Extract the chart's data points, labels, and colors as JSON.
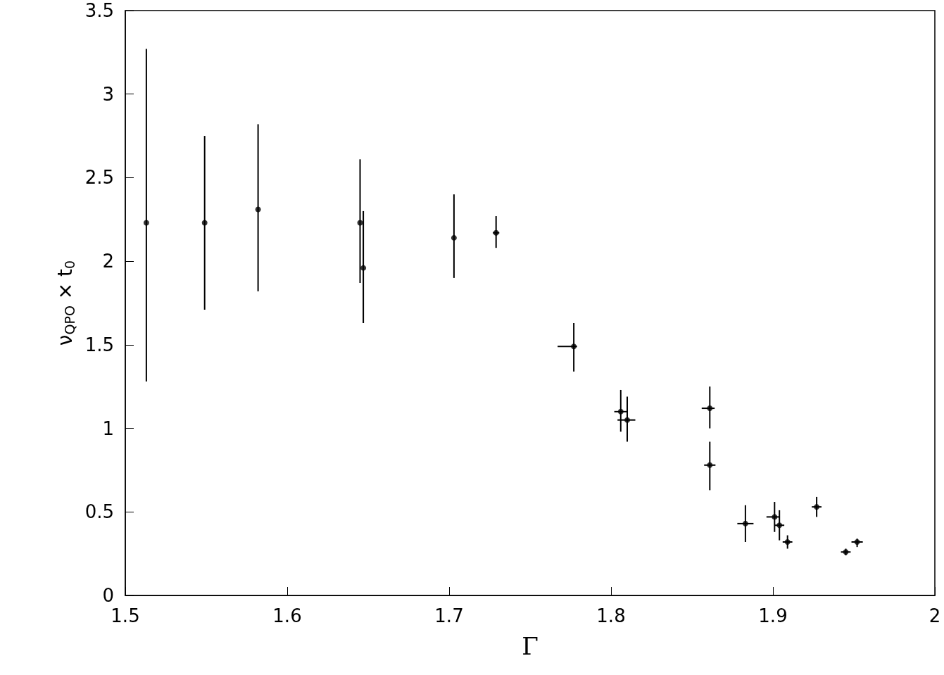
{
  "chart_data": {
    "type": "scatter",
    "xlabel": "Γ",
    "ylabel": "ν$_{QPO}$ × t$_{0}$",
    "x": [
      1.513,
      1.549,
      1.582,
      1.645,
      1.647,
      1.703,
      1.729,
      1.777,
      1.806,
      1.81,
      1.861,
      1.861,
      1.883,
      1.901,
      1.904,
      1.909,
      1.927,
      1.945,
      1.952
    ],
    "values": [
      2.23,
      2.23,
      2.31,
      2.23,
      1.96,
      2.14,
      2.17,
      1.49,
      1.1,
      1.05,
      1.12,
      0.78,
      0.43,
      0.47,
      0.42,
      0.32,
      0.53,
      0.26,
      0.32
    ],
    "errors": [
      [
        1.28,
        3.27
      ],
      [
        1.71,
        2.75
      ],
      [
        1.82,
        2.82
      ],
      [
        1.87,
        2.61
      ],
      [
        1.63,
        2.3
      ],
      [
        1.9,
        2.4
      ],
      [
        2.08,
        2.27
      ],
      [
        1.34,
        1.63
      ],
      [
        0.98,
        1.23
      ],
      [
        0.92,
        1.19
      ],
      [
        1.0,
        1.25
      ],
      [
        0.63,
        0.92
      ],
      [
        0.32,
        0.54
      ],
      [
        0.38,
        0.56
      ],
      [
        0.33,
        0.51
      ],
      [
        0.28,
        0.36
      ],
      [
        0.47,
        0.59
      ],
      [
        0.24,
        0.28
      ],
      [
        0.29,
        0.34
      ]
    ],
    "xerrors": [
      null,
      null,
      null,
      null,
      null,
      null,
      0.002,
      [
        1.767,
        1.779
      ],
      0.004,
      [
        1.804,
        1.815
      ],
      [
        1.856,
        1.864
      ],
      0.0035,
      0.005,
      [
        1.896,
        1.904
      ],
      0.003,
      0.003,
      0.003,
      0.003,
      0.0035
    ],
    "color": "#000000",
    "marker": "circle",
    "xlim": [
      1.5,
      2
    ],
    "xticks": [
      1.5,
      1.6,
      1.7,
      1.8,
      1.9,
      2
    ],
    "ylim": [
      0,
      3.5
    ],
    "yticks": [
      0,
      0.5,
      1,
      1.5,
      2,
      2.5,
      3,
      3.5
    ],
    "grid": false
  }
}
